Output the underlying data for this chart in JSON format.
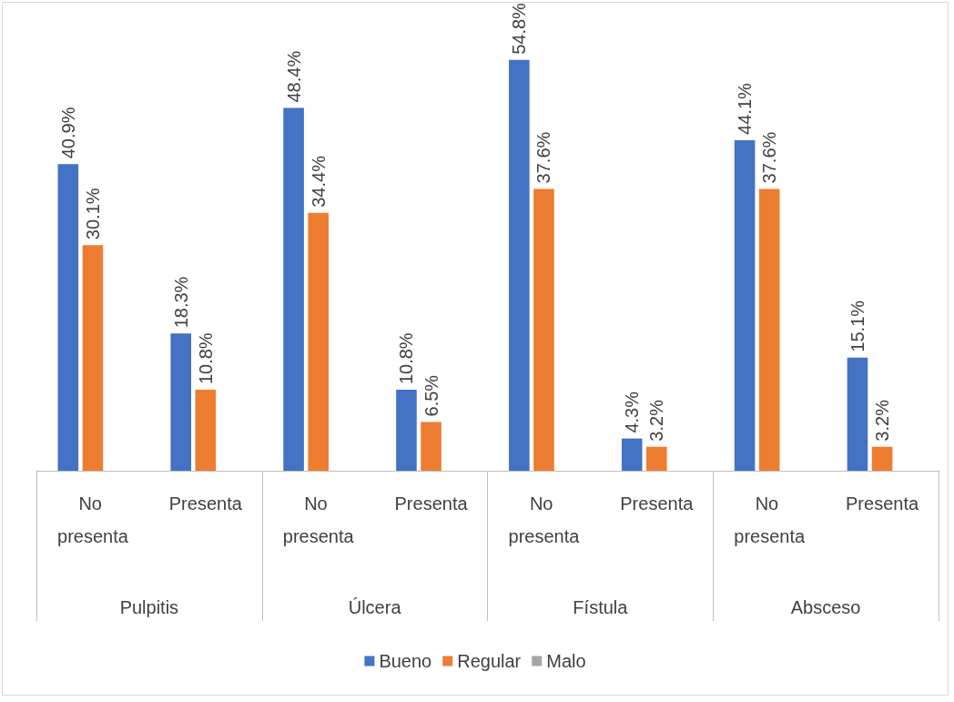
{
  "chart_data": {
    "type": "bar",
    "categories": [
      "No presenta",
      "Presenta",
      "No presenta",
      "Presenta",
      "No presenta",
      "Presenta",
      "No presenta",
      "Presenta"
    ],
    "series": [
      {
        "name": "Bueno",
        "color": "#4472c4",
        "values": [
          40.9,
          18.3,
          48.4,
          10.8,
          54.8,
          4.3,
          44.1,
          15.1
        ],
        "value_labels": [
          "40.9%",
          "18.3%",
          "48.4%",
          "10.8%",
          "54.8%",
          "4.3%",
          "44.1%",
          "15.1%"
        ]
      },
      {
        "name": "Regular",
        "color": "#ed7d31",
        "values": [
          30.1,
          10.8,
          34.4,
          6.5,
          37.6,
          3.2,
          37.6,
          3.2
        ],
        "value_labels": [
          "30.1%",
          "10.8%",
          "34.4%",
          "6.5%",
          "37.6%",
          "3.2%",
          "37.6%",
          "3.2%"
        ]
      },
      {
        "name": "Malo",
        "color": "#a5a5a5",
        "values": [
          null,
          null,
          null,
          null,
          null,
          null,
          null,
          null
        ]
      }
    ],
    "annotations": [
      "Pulpitis",
      "Úlcera",
      "Fístula",
      "Absceso"
    ],
    "legend": "bottom"
  }
}
